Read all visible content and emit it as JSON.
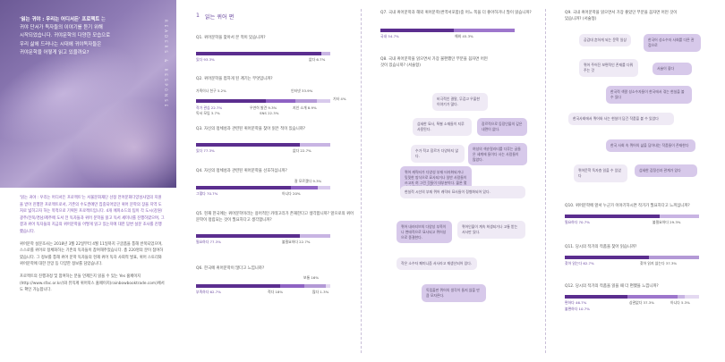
{
  "sidebar": {
    "hero_lines": [
      {
        "text": "'읽는 귀야 : 우리는 어디서든' 프로젝트",
        "tail": " 는"
      },
      {
        "text": "귀야 단서가 독자들의 이야기를 듣기 위해",
        "tail": ""
      },
      {
        "text": "시작되었습니다. 귀야문학의 다양한 모습으로",
        "tail": ""
      },
      {
        "text": "우리 삶에 드러나는 시대에 귀야독자들은",
        "tail": ""
      },
      {
        "text": "귀야문학을 어떻게 읽고 있을까요?",
        "tail": ""
      }
    ],
    "vertical_text": "READERS & RESPONSE",
    "intro_paragraphs": [
      "'읽는 귀야 : 우리는 어디서든 프로젝트'는 서울문화재단 선정 언어문화다양성사업의 지원을 받아 진행한 프로젝트로서, 기존의 수도권에만 집중되어있던 퀴어 문학의 장을 지역 도처로 넓히고자 하는 목적으로 기획된 프로젝트입니다. 4개 에피소드의 팀이 각 도시(강원/광주/전북/경남/제주에 도서 전 독자들과 퀴어 문학을 읽고 독서 세미나를 진행하였으며, 그 결과 퀴어 독자들의 지금의 퀴어문학을 어떻게 읽고 있는지에 대한 답변 설문 조사를 진행했습니다.",
      "퀴어문학 설문조사는 2018년 3월 22일부터 4월 11일까지 구글폼을 통해 반복되었으며, 스스로를 퀴어로 정체화하는 기존의 독자들이 참여해주었습니다. 총 220명의 분이 참여하였습니다. 그 정보를 통해 퀴어 문학 독자들의 현재 퀴어 독자 사회적 발표, 퀴어 스토리와 퀴어문학에 대한 전망 등 다양한 정보를 담았습니다.",
      "프로젝트의 진행과정 및 참여하는 분들 언제든지 읽을 수 있는 Yes 홈페이지(http://www.sfac.or.kr/)와 뮤직계 퀴어북스 홈페이지(rainbowbooktrade.com)에서도 확인 가능합니다."
    ]
  },
  "col2": {
    "section_number": "1",
    "section_title": "읽는 퀴어 편",
    "questions": [
      {
        "q": "Q1. 퀴어문학을 찾아서 본 적이 있습니까?",
        "labels": [
          "있다 93.3%",
          "없다 6.7%"
        ]
      },
      {
        "q": "Q2. 퀴어문학을 접하게 된 계기는 무엇입니까?",
        "labels": [
          "인터넷 33.9%",
          "가족이나 친구 5.2%",
          "기타 4%",
          "작가 관심 22.7%",
          "독서 모임 3.7%",
          "우연히 발견 9.3%",
          "지인 소개 8.9%",
          "SNS 22.3%"
        ]
      },
      {
        "q": "Q3. 자신의 정체성과 관련된 퀴어문학을 찾아 읽은 적이 있습니까?",
        "labels": [
          "있다 77.3%",
          "없다 22.7%"
        ]
      },
      {
        "q": "Q4. 자신의 정체성과 관련된 퀴어문학을 선호하십니까?",
        "labels": [
          "그렇다 70.7%",
          "아니다 20%",
          "잘 모르겠다 9.3%"
        ]
      },
      {
        "q": "Q5. 현재 한국에는 퀴어문학이라는 용어적인 카테고리가 존재한다고 생각합니까? 앞으로의 퀴어문학이 정립되는 것이 필요하다고 생각합니까?",
        "labels": [
          "필요하다 77.3%",
          "불필요하다 22.7%"
        ]
      },
      {
        "q": "Q6. 한국에 퀴어문학이 많다고 느낍니까?",
        "labels": [
          "부족하다 62.7%",
          "적다 18%",
          "보통 16%",
          "많다 1.3%"
        ]
      }
    ]
  },
  "col3": {
    "q7": {
      "q": "Q7. 국내 퀴어문학과 해외 퀴어문학(번역서포함)중 어느 쪽을 더 좋아하거나 많이 읽습니까?",
      "labels": [
        "국내 54.7%",
        "해외 45.3%"
      ]
    },
    "q8": {
      "q": "Q8. 국내 퀴어문학을 읽으면서 가장 불편했던 부분을 꼽자면 어떤 것이 있습니까? (서술형)"
    },
    "bubbles": [
      "비극적인 결말, 무겁고 우울한 이야기가 많다.",
      "섬세한 묘사, 특별 소재들이 지루 사용된다.",
      "장르적으로 등장인물의 깊은 내면이 없다.",
      "수가 적고 장르가 다양하지 않다.",
      "여성의 섹슈얼리티를 다루는 글들은 세계에 들이다 사는 사람들이 많았다.",
      "퀴어 캐릭터가 다양성 부재 타자화되거나 밋밋한 방식으로 묘사되거나 일반 사람들이 쓰고자 혀 그린 것들이 대부분이다. 물론 몇가지 퀴어의 고민들이 있다.",
      "현실적 시선의 부재 퀴어 캐릭터 묘사들이 정형화되어 있다.",
      "퀴어 내러티브의 다양성 부족이나 변태적으로 묘사되고 퀴어성으로 종결한다.",
      "퀴어인물이 계속 희생되거나 고통 받는 서사만 있다.",
      "작은 소수자 페미니즘 서사라고 재생산되어 있다.",
      "독립출판 퀴어의 생각이 들지 않을 만큼 모자른다."
    ]
  },
  "col4": {
    "q9": {
      "q": "Q9. 국내 퀴어문학을 읽으면서 가장 좋았던 부분을 꼽자면 어떤 것이 있습니까? (서술형)"
    },
    "bubbles": [
      "공감대 흔하게 되는 문학 일상",
      "한국어 성소수자 사회를 다른 관점으로",
      "퀴어 주어진 보편적인 존재를 다뤄주는 것",
      "서술이 좋다",
      "한국적 색깔 성소수자들이 한국에서 겪는 현실을 볼 수 있다",
      "한국사회에서 퀴어와 사는 현실이 담긴 작품을 볼 수 있었다",
      "한국 사회 속 퀴어의 삶을 담아내는 작품들이 존재한다",
      "퀴어문학 독자층 읽을 수 있었다",
      "섬세한 감정선과 관계가 있다"
    ],
    "questions": [
      {
        "q": "Q10. 퀴어문학에 앞서 누군가 이야기하시면 작가가 필요하다고 느끼십니까?",
        "labels": [
          "필요하다 70.7%",
          "불필요하다 29.3%"
        ]
      },
      {
        "q": "Q11. 당시의 작가의 작품을 찾아 읽습니까?",
        "labels": [
          "찾아 읽는다 62.7%",
          "찾아 읽지 않는다 37.3%"
        ]
      },
      {
        "q": "Q12. 당시의 작가의 작품을 읽을 때 더 편했을 느낍니까?",
        "labels": [
          "편하다 46.7%",
          "상관없다 37.3%",
          "아니다 5.3%",
          "불편하다 10.7%"
        ]
      }
    ]
  },
  "colors": {
    "primary": "#5b2e8f",
    "mid": "#8e62c3",
    "light": "#c8b4e3",
    "track": "#ece6f4"
  }
}
